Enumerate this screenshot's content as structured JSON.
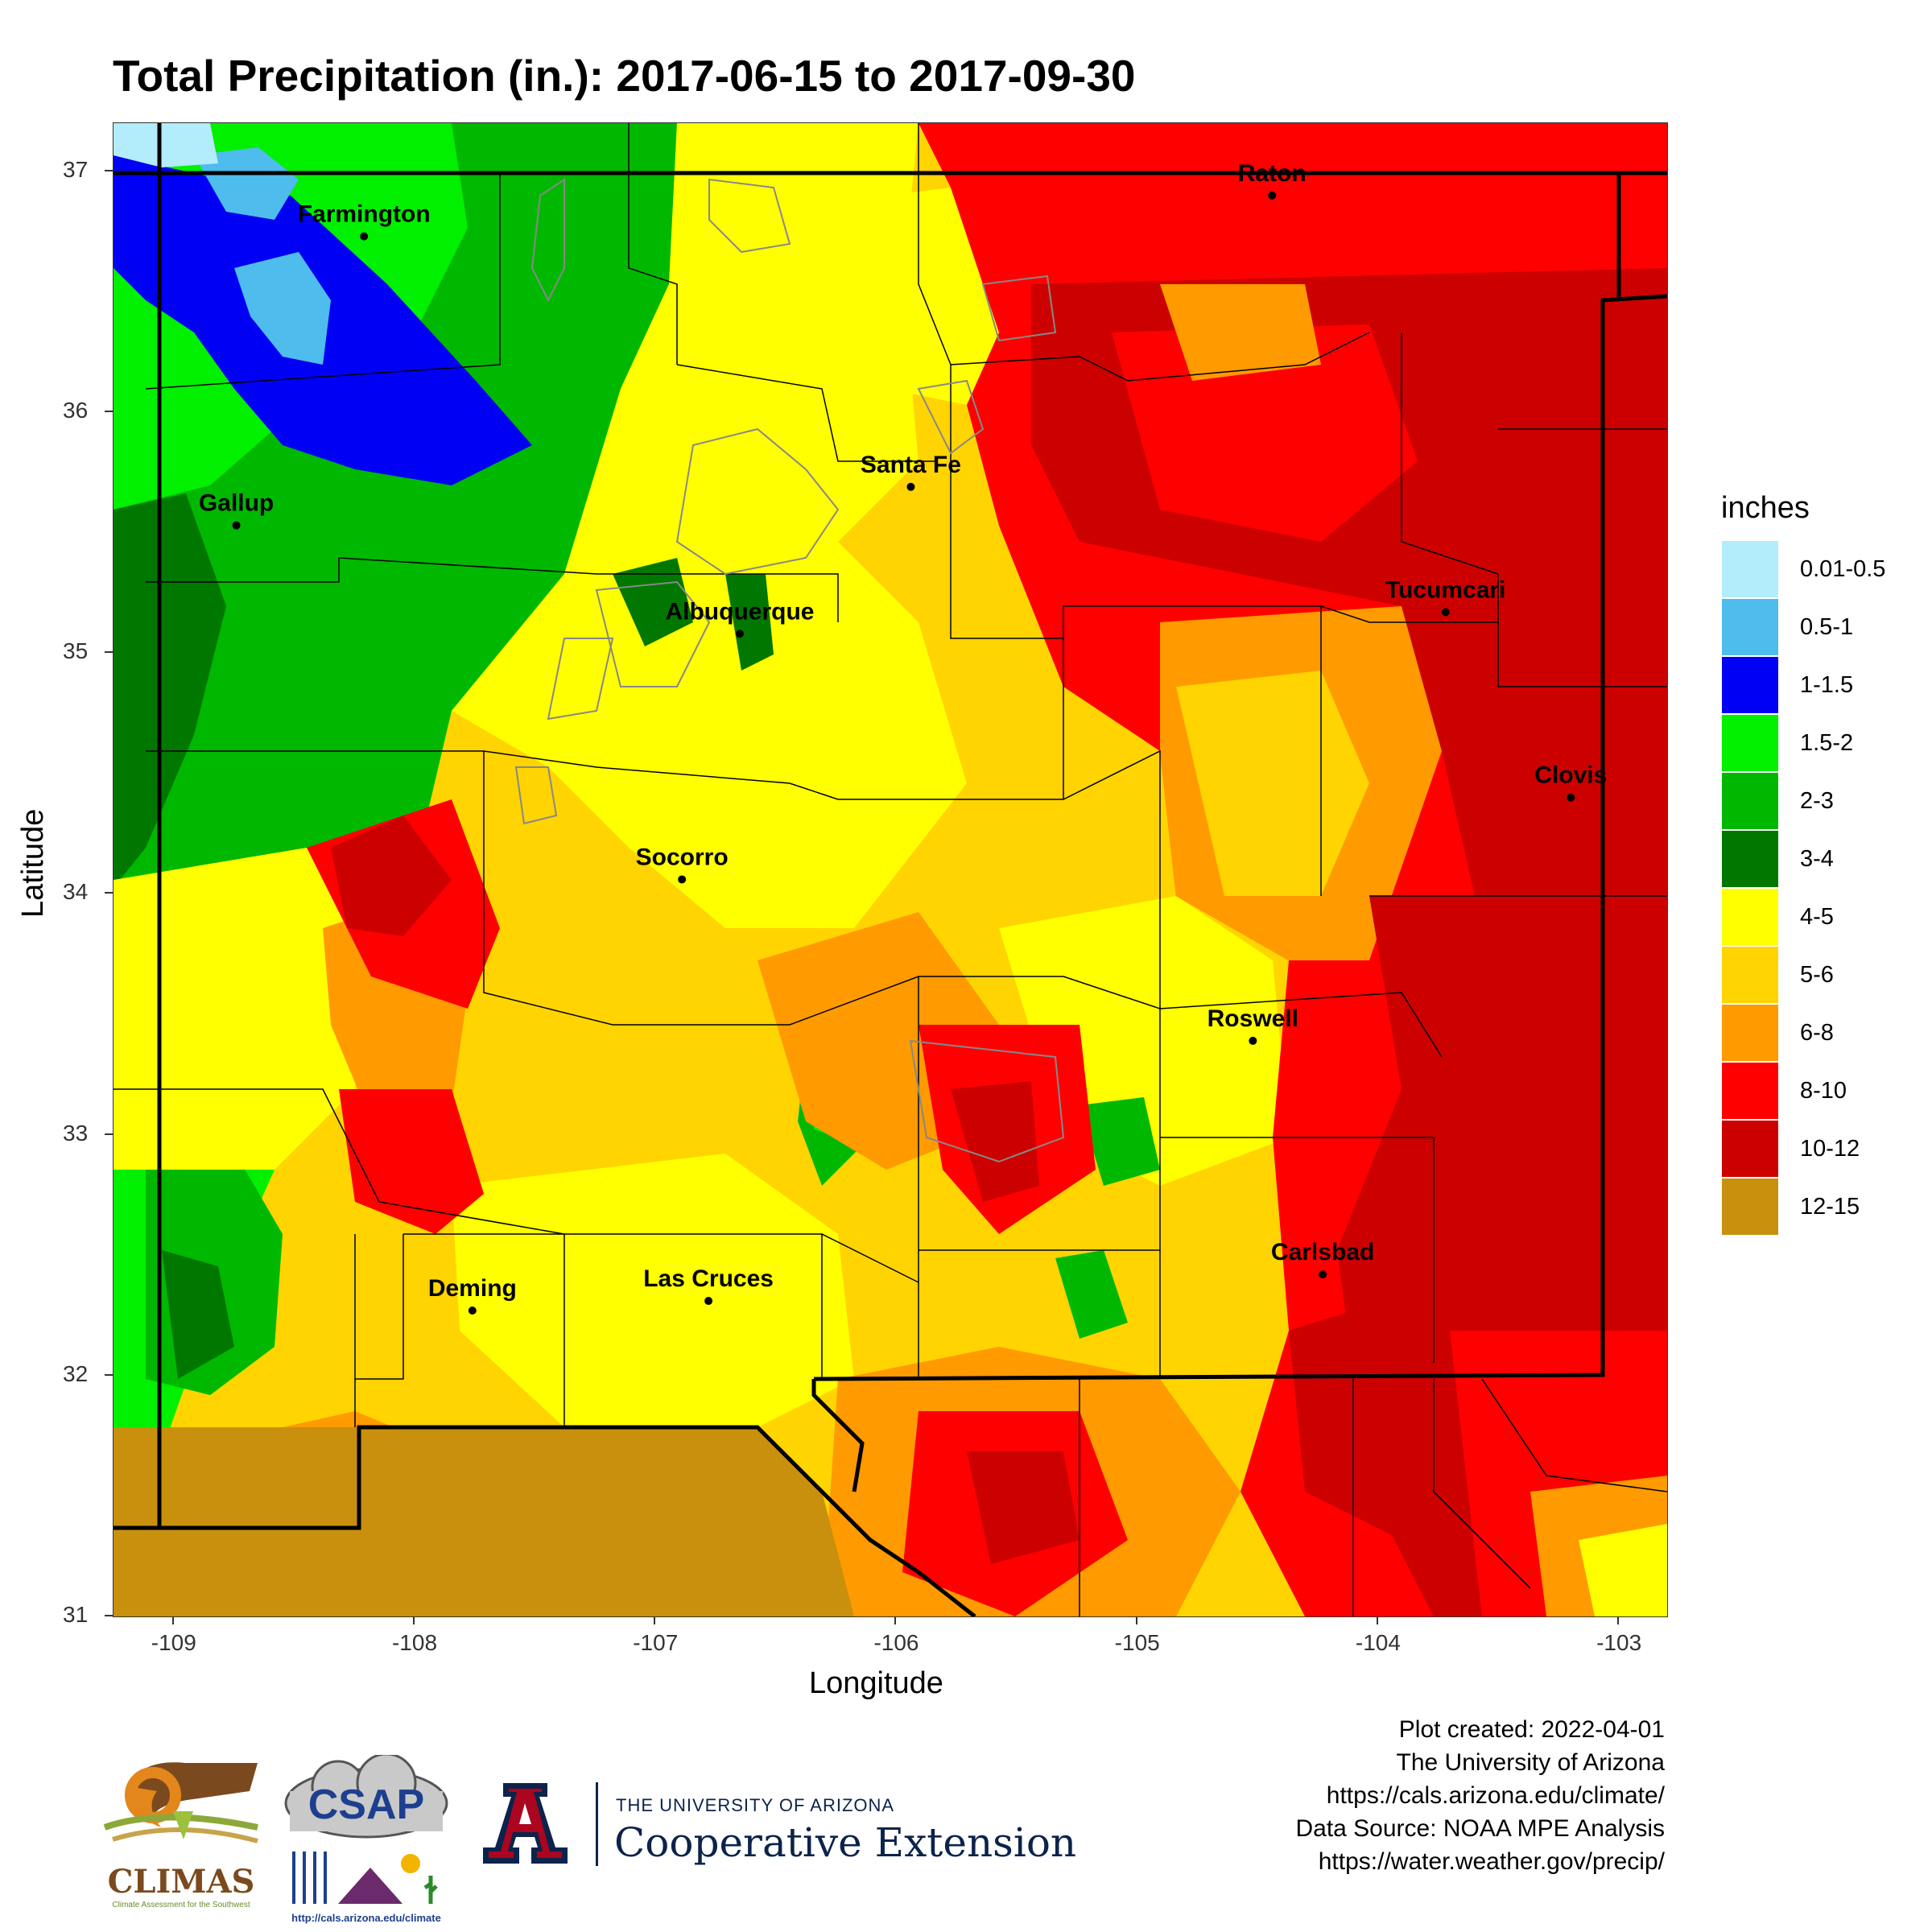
{
  "title": "Total Precipitation (in.): 2017-06-15 to 2017-09-30",
  "axes": {
    "xlabel": "Longitude",
    "ylabel": "Latitude",
    "x_ticks": [
      "-109",
      "-108",
      "-107",
      "-106",
      "-105",
      "-104",
      "-103"
    ],
    "y_ticks": [
      "37",
      "36",
      "35",
      "34",
      "33",
      "32",
      "31"
    ],
    "xlim": [
      -109.25,
      -102.8
    ],
    "ylim": [
      31.0,
      37.2
    ]
  },
  "legend": {
    "title": "inches",
    "items": [
      {
        "label": "0.01-0.5",
        "color": "#b3ecfa"
      },
      {
        "label": "0.5-1",
        "color": "#4ebcec"
      },
      {
        "label": "1-1.5",
        "color": "#0000f5"
      },
      {
        "label": "1.5-2",
        "color": "#00f000"
      },
      {
        "label": "2-3",
        "color": "#00b800"
      },
      {
        "label": "3-4",
        "color": "#007800"
      },
      {
        "label": "4-5",
        "color": "#ffff00"
      },
      {
        "label": "5-6",
        "color": "#ffd400"
      },
      {
        "label": "6-8",
        "color": "#ff9a00"
      },
      {
        "label": "8-10",
        "color": "#ff0000"
      },
      {
        "label": "10-12",
        "color": "#cd0000"
      },
      {
        "label": "12-15",
        "color": "#c8900c"
      }
    ]
  },
  "cities": [
    {
      "name": "Farmington",
      "lon": -108.21,
      "lat": 36.73
    },
    {
      "name": "Raton",
      "lon": -104.44,
      "lat": 36.9
    },
    {
      "name": "Santa Fe",
      "lon": -105.94,
      "lat": 35.69
    },
    {
      "name": "Gallup",
      "lon": -108.74,
      "lat": 35.53
    },
    {
      "name": "Albuquerque",
      "lon": -106.65,
      "lat": 35.08
    },
    {
      "name": "Tucumcari",
      "lon": -103.72,
      "lat": 35.17
    },
    {
      "name": "Clovis",
      "lon": -103.2,
      "lat": 34.4
    },
    {
      "name": "Socorro",
      "lon": -106.89,
      "lat": 34.06
    },
    {
      "name": "Roswell",
      "lon": -104.52,
      "lat": 33.39
    },
    {
      "name": "Carlsbad",
      "lon": -104.23,
      "lat": 32.42
    },
    {
      "name": "Las Cruces",
      "lon": -106.78,
      "lat": 32.31
    },
    {
      "name": "Deming",
      "lon": -107.76,
      "lat": 32.27
    }
  ],
  "credits": [
    "Plot created: 2022-04-01",
    "The University of Arizona",
    "https://cals.arizona.edu/climate/",
    "Data Source: NOAA MPE Analysis",
    "https://water.weather.gov/precip/"
  ],
  "logos": {
    "climas_name": "CLIMAS",
    "climas_tagline": "Climate Assessment for the Southwest",
    "csap_name": "CSAP",
    "csap_url": "http://cals.arizona.edu/climate",
    "ua_letter": "A",
    "ua_line1": "THE UNIVERSITY OF ARIZONA",
    "ua_line2": "Cooperative Extension"
  }
}
